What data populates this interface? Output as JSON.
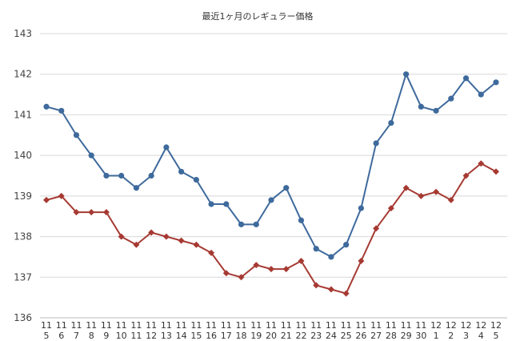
{
  "chart_data": {
    "type": "line",
    "title": "最近1ヶ月のレギュラー価格",
    "xlabel": "",
    "ylabel": "",
    "ylim": [
      136,
      143
    ],
    "yticks": [
      "136",
      "137",
      "138",
      "139",
      "140",
      "141",
      "142",
      "143"
    ],
    "grid": true,
    "legend": "none",
    "categories": [
      {
        "month": "11",
        "day": "5"
      },
      {
        "month": "11",
        "day": "6"
      },
      {
        "month": "11",
        "day": "7"
      },
      {
        "month": "11",
        "day": "8"
      },
      {
        "month": "11",
        "day": "9"
      },
      {
        "month": "11",
        "day": "10"
      },
      {
        "month": "11",
        "day": "11"
      },
      {
        "month": "11",
        "day": "12"
      },
      {
        "month": "11",
        "day": "13"
      },
      {
        "month": "11",
        "day": "14"
      },
      {
        "month": "11",
        "day": "15"
      },
      {
        "month": "11",
        "day": "16"
      },
      {
        "month": "11",
        "day": "17"
      },
      {
        "month": "11",
        "day": "18"
      },
      {
        "month": "11",
        "day": "19"
      },
      {
        "month": "11",
        "day": "20"
      },
      {
        "month": "11",
        "day": "21"
      },
      {
        "month": "11",
        "day": "22"
      },
      {
        "month": "11",
        "day": "23"
      },
      {
        "month": "11",
        "day": "24"
      },
      {
        "month": "11",
        "day": "25"
      },
      {
        "month": "11",
        "day": "26"
      },
      {
        "month": "11",
        "day": "27"
      },
      {
        "month": "11",
        "day": "28"
      },
      {
        "month": "11",
        "day": "29"
      },
      {
        "month": "11",
        "day": "30"
      },
      {
        "month": "12",
        "day": "1"
      },
      {
        "month": "12",
        "day": "2"
      },
      {
        "month": "12",
        "day": "3"
      },
      {
        "month": "12",
        "day": "4"
      },
      {
        "month": "12",
        "day": "5"
      }
    ],
    "series": [
      {
        "color": "#3e6a9c",
        "marker": "circle",
        "values": [
          141.2,
          141.1,
          140.5,
          140.0,
          139.5,
          139.5,
          139.2,
          139.5,
          140.2,
          139.6,
          139.4,
          138.8,
          138.8,
          138.3,
          138.3,
          138.9,
          139.2,
          138.4,
          137.7,
          137.5,
          137.8,
          138.7,
          140.3,
          140.8,
          142.0,
          141.2,
          141.1,
          141.4,
          141.9,
          141.5,
          141.8
        ]
      },
      {
        "color": "#a63a33",
        "marker": "diamond",
        "values": [
          138.9,
          139.0,
          138.6,
          138.6,
          138.6,
          138.0,
          137.8,
          138.1,
          138.0,
          137.9,
          137.8,
          137.6,
          137.1,
          137.0,
          137.3,
          137.2,
          137.2,
          137.4,
          136.8,
          136.7,
          136.6,
          137.4,
          138.2,
          138.7,
          139.2,
          139.0,
          139.1,
          138.9,
          139.5,
          139.8,
          139.6
        ]
      }
    ]
  }
}
